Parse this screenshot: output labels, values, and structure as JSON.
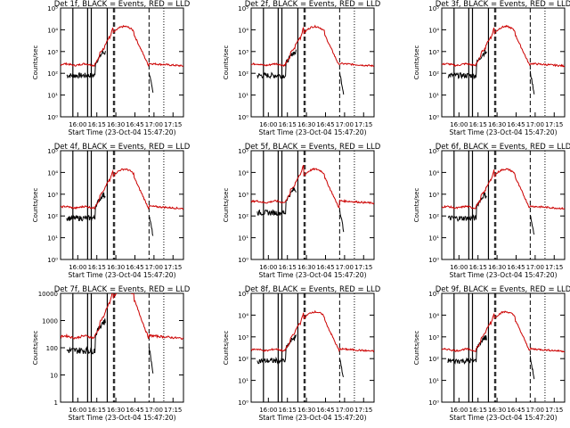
{
  "figure": {
    "background": "#ffffff",
    "colors": {
      "events": "#000000",
      "lld": "#cc0000",
      "axes": "#000000"
    }
  },
  "chart_data": [
    {
      "type": "line",
      "title": "Det 1f, BLACK = Events, RED = LLD",
      "xlabel": "Start Time (23-Oct-04 15:47:20)",
      "ylabel": "Counts/sec",
      "y_scale": "log",
      "ylim": [
        1,
        100000
      ],
      "y_ticks": [
        1,
        10,
        100,
        1000,
        10000,
        100000
      ],
      "y_tick_labels": [
        "10⁰",
        "10¹",
        "10²",
        "10³",
        "10⁴",
        "10⁵"
      ],
      "x_ticks": [
        "16:00",
        "16:15",
        "16:30",
        "16:45",
        "17:00",
        "17:15"
      ],
      "series": [
        {
          "name": "Events",
          "color": "#000000",
          "profile": "events_a"
        },
        {
          "name": "LLD",
          "color": "#cc0000",
          "profile": "lld_a"
        }
      ]
    },
    {
      "type": "line",
      "title": "Det 2f, BLACK = Events, RED = LLD",
      "xlabel": "Start Time (23-Oct-04 15:47:20)",
      "ylabel": "Counts/sec",
      "y_scale": "log",
      "ylim": [
        1,
        100000
      ],
      "y_ticks": [
        1,
        10,
        100,
        1000,
        10000,
        100000
      ],
      "y_tick_labels": [
        "10⁰",
        "10¹",
        "10²",
        "10³",
        "10⁴",
        "10⁵"
      ],
      "x_ticks": [
        "16:00",
        "16:15",
        "16:30",
        "16:45",
        "17:00",
        "17:15"
      ],
      "series": [
        {
          "name": "Events",
          "color": "#000000",
          "profile": "events_a"
        },
        {
          "name": "LLD",
          "color": "#cc0000",
          "profile": "lld_a"
        }
      ]
    },
    {
      "type": "line",
      "title": "Det 3f, BLACK = Events, RED = LLD",
      "xlabel": "Start Time (23-Oct-04 15:47:20)",
      "ylabel": "Counts/sec",
      "y_scale": "log",
      "ylim": [
        1,
        100000
      ],
      "y_ticks": [
        1,
        10,
        100,
        1000,
        10000,
        100000
      ],
      "y_tick_labels": [
        "10⁰",
        "10¹",
        "10²",
        "10³",
        "10⁴",
        "10⁵"
      ],
      "x_ticks": [
        "16:00",
        "16:15",
        "16:30",
        "16:45",
        "17:00",
        "17:15"
      ],
      "series": [
        {
          "name": "Events",
          "color": "#000000",
          "profile": "events_a"
        },
        {
          "name": "LLD",
          "color": "#cc0000",
          "profile": "lld_a"
        }
      ]
    },
    {
      "type": "line",
      "title": "Det 4f, BLACK = Events, RED = LLD",
      "xlabel": "Start Time (23-Oct-04 15:47:20)",
      "ylabel": "Counts/sec",
      "y_scale": "log",
      "ylim": [
        1,
        100000
      ],
      "y_ticks": [
        1,
        10,
        100,
        1000,
        10000,
        100000
      ],
      "y_tick_labels": [
        "10⁰",
        "10¹",
        "10²",
        "10³",
        "10⁴",
        "10⁵"
      ],
      "x_ticks": [
        "16:00",
        "16:15",
        "16:30",
        "16:45",
        "17:00",
        "17:15"
      ],
      "series": [
        {
          "name": "Events",
          "color": "#000000",
          "profile": "events_a"
        },
        {
          "name": "LLD",
          "color": "#cc0000",
          "profile": "lld_a"
        }
      ]
    },
    {
      "type": "line",
      "title": "Det 5f, BLACK = Events, RED = LLD",
      "xlabel": "Start Time (23-Oct-04 15:47:20)",
      "ylabel": "Counts/sec",
      "y_scale": "log",
      "ylim": [
        1,
        100000
      ],
      "y_ticks": [
        1,
        10,
        100,
        1000,
        10000,
        100000
      ],
      "y_tick_labels": [
        "10⁰",
        "10¹",
        "10²",
        "10³",
        "10⁴",
        "10⁵"
      ],
      "x_ticks": [
        "16:00",
        "16:15",
        "16:30",
        "16:45",
        "17:00",
        "17:15"
      ],
      "series": [
        {
          "name": "Events",
          "color": "#000000",
          "profile": "events_b"
        },
        {
          "name": "LLD",
          "color": "#cc0000",
          "profile": "lld_b"
        }
      ]
    },
    {
      "type": "line",
      "title": "Det 6f, BLACK = Events, RED = LLD",
      "xlabel": "Start Time (23-Oct-04 15:47:20)",
      "ylabel": "Counts/sec",
      "y_scale": "log",
      "ylim": [
        1,
        100000
      ],
      "y_ticks": [
        1,
        10,
        100,
        1000,
        10000,
        100000
      ],
      "y_tick_labels": [
        "10⁰",
        "10¹",
        "10²",
        "10³",
        "10⁴",
        "10⁵"
      ],
      "x_ticks": [
        "16:00",
        "16:15",
        "16:30",
        "16:45",
        "17:00",
        "17:15"
      ],
      "series": [
        {
          "name": "Events",
          "color": "#000000",
          "profile": "events_a"
        },
        {
          "name": "LLD",
          "color": "#cc0000",
          "profile": "lld_a"
        }
      ]
    },
    {
      "type": "line",
      "title": "Det 7f, BLACK = Events, RED = LLD",
      "xlabel": "Start Time (23-Oct-04 15:47:20)",
      "ylabel": "Counts/sec",
      "y_scale": "log",
      "ylim": [
        1,
        10000
      ],
      "y_ticks": [
        1,
        10,
        100,
        1000,
        10000
      ],
      "y_tick_labels": [
        "1",
        "10",
        "100",
        "1000",
        "10000"
      ],
      "x_ticks": [
        "16:00",
        "16:15",
        "16:30",
        "16:45",
        "17:00",
        "17:15"
      ],
      "series": [
        {
          "name": "Events",
          "color": "#000000",
          "profile": "events_a"
        },
        {
          "name": "LLD",
          "color": "#cc0000",
          "profile": "lld_a"
        }
      ]
    },
    {
      "type": "line",
      "title": "Det 8f, BLACK = Events, RED = LLD",
      "xlabel": "Start Time (23-Oct-04 15:47:20)",
      "ylabel": "Counts/sec",
      "y_scale": "log",
      "ylim": [
        1,
        100000
      ],
      "y_ticks": [
        1,
        10,
        100,
        1000,
        10000,
        100000
      ],
      "y_tick_labels": [
        "10⁰",
        "10¹",
        "10²",
        "10³",
        "10⁴",
        "10⁵"
      ],
      "x_ticks": [
        "16:00",
        "16:15",
        "16:30",
        "16:45",
        "17:00",
        "17:15"
      ],
      "series": [
        {
          "name": "Events",
          "color": "#000000",
          "profile": "events_a"
        },
        {
          "name": "LLD",
          "color": "#cc0000",
          "profile": "lld_a"
        }
      ]
    },
    {
      "type": "line",
      "title": "Det 9f, BLACK = Events, RED = LLD",
      "xlabel": "Start Time (23-Oct-04 15:47:20)",
      "ylabel": "Counts/sec",
      "y_scale": "log",
      "ylim": [
        1,
        100000
      ],
      "y_ticks": [
        1,
        10,
        100,
        1000,
        10000,
        100000
      ],
      "y_tick_labels": [
        "10⁰",
        "10¹",
        "10²",
        "10³",
        "10⁴",
        "10⁵"
      ],
      "x_ticks": [
        "16:00",
        "16:15",
        "16:30",
        "16:45",
        "17:00",
        "17:15"
      ],
      "series": [
        {
          "name": "Events",
          "color": "#000000",
          "profile": "events_a"
        },
        {
          "name": "LLD",
          "color": "#cc0000",
          "profile": "lld_a"
        }
      ]
    }
  ]
}
